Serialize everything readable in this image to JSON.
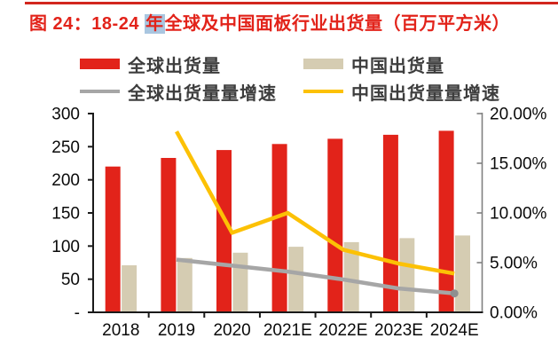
{
  "page": {
    "title_prefix": "图 24：18-24 ",
    "title_highlighted": "年",
    "title_suffix": "全球及中国面板行业出货量（百万平方米）",
    "title_color": "#e2231a",
    "rule_color": "#d2261e",
    "highlight_color": "#a9c6e0"
  },
  "legend": [
    {
      "label": "全球出货量",
      "swatch": "bar",
      "color": "#e2231a"
    },
    {
      "label": "中国出货量",
      "swatch": "bar",
      "color": "#d5ccb2"
    },
    {
      "label": "全球出货量量增速",
      "swatch": "line",
      "color": "#a6a6a6"
    },
    {
      "label": "中国出货量量增速",
      "swatch": "line",
      "color": "#fcc105"
    }
  ],
  "chart_data": {
    "type": "bar+line",
    "title": "图 24：18-24 年全球及中国面板行业出货量（百万平方米）",
    "categories": [
      "2018",
      "2019",
      "2020",
      "2021E",
      "2022E",
      "2023E",
      "2024E"
    ],
    "bar_series": [
      {
        "key": "global-shipments",
        "name": "全球出货量",
        "axis": "left",
        "color": "#e2231a",
        "values": [
          220,
          233,
          245,
          254,
          262,
          268,
          274
        ]
      },
      {
        "key": "china-shipments",
        "name": "中国出货量",
        "axis": "left",
        "color": "#d5ccb2",
        "values": [
          71,
          82,
          90,
          99,
          106,
          112,
          116
        ]
      }
    ],
    "line_series": [
      {
        "key": "global-growth",
        "name": "全球出货量量增速",
        "axis": "right",
        "color": "#a6a6a6",
        "values_pct": [
          null,
          5.3,
          4.7,
          4.1,
          3.3,
          2.4,
          1.9
        ],
        "end_dot": true,
        "dot_color": "#8f8f8f"
      },
      {
        "key": "china-growth",
        "name": "中国出货量量增速",
        "axis": "right",
        "color": "#fcc105",
        "values_pct": [
          null,
          18.2,
          8.0,
          10.0,
          6.3,
          4.9,
          3.9
        ],
        "end_dot": false
      }
    ],
    "left_axis": {
      "min": 0,
      "max": 300,
      "tick_labels": [
        "300",
        "250",
        "200",
        "150",
        "100",
        "50",
        "-"
      ]
    },
    "right_axis": {
      "min": 0,
      "max": 20,
      "tick_labels": [
        "20.00%",
        "15.00%",
        "10.00%",
        "5.00%",
        "0.00%"
      ]
    },
    "grid": "off",
    "legend_position": "top"
  }
}
